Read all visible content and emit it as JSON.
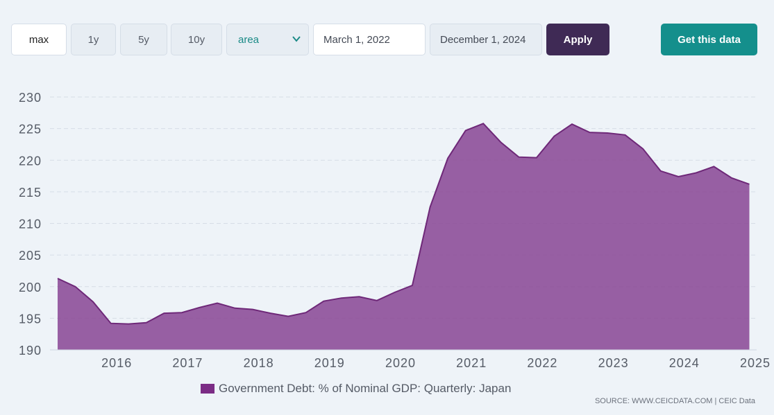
{
  "toolbar": {
    "range_buttons": [
      "max",
      "1y",
      "5y",
      "10y"
    ],
    "chart_type_select": "area",
    "start_date": "March 1, 2022",
    "end_date": "December 1, 2024",
    "apply_label": "Apply",
    "get_data_label": "Get this data"
  },
  "legend": {
    "label": "Government Debt: % of Nominal GDP: Quarterly: Japan",
    "color": "#7b2c85"
  },
  "source": "SOURCE: WWW.CEICDATA.COM | CEIC Data",
  "chart_data": {
    "type": "area",
    "title": "",
    "xlabel": "",
    "ylabel": "",
    "ylim": [
      190,
      230
    ],
    "yticks": [
      190,
      195,
      200,
      205,
      210,
      215,
      220,
      225,
      230
    ],
    "xticks": [
      "2016",
      "2017",
      "2018",
      "2019",
      "2020",
      "2021",
      "2022",
      "2023",
      "2024",
      "2025"
    ],
    "grid": true,
    "fill_color": "#8b4a96",
    "line_color": "#6e2878",
    "series": [
      {
        "name": "Government Debt: % of Nominal GDP: Quarterly: Japan",
        "x": [
          "2015-03",
          "2015-06",
          "2015-09",
          "2015-12",
          "2016-03",
          "2016-06",
          "2016-09",
          "2016-12",
          "2017-03",
          "2017-06",
          "2017-09",
          "2017-12",
          "2018-03",
          "2018-06",
          "2018-09",
          "2018-12",
          "2019-03",
          "2019-06",
          "2019-09",
          "2019-12",
          "2020-03",
          "2020-06",
          "2020-09",
          "2020-12",
          "2021-03",
          "2021-06",
          "2021-09",
          "2021-12",
          "2022-03",
          "2022-06",
          "2022-09",
          "2022-12",
          "2023-03",
          "2023-06",
          "2023-09",
          "2023-12",
          "2024-03",
          "2024-06",
          "2024-09",
          "2024-12"
        ],
        "values": [
          201.3,
          200.0,
          197.6,
          194.2,
          194.1,
          194.3,
          195.8,
          195.9,
          196.7,
          197.4,
          196.6,
          196.4,
          195.8,
          195.3,
          195.9,
          197.7,
          198.2,
          198.4,
          197.8,
          199.1,
          200.2,
          212.6,
          220.3,
          224.7,
          225.8,
          222.8,
          220.5,
          220.4,
          223.8,
          225.7,
          224.4,
          224.3,
          224.0,
          221.8,
          218.3,
          217.4,
          218.0,
          219.0,
          217.2,
          216.2
        ]
      }
    ]
  }
}
